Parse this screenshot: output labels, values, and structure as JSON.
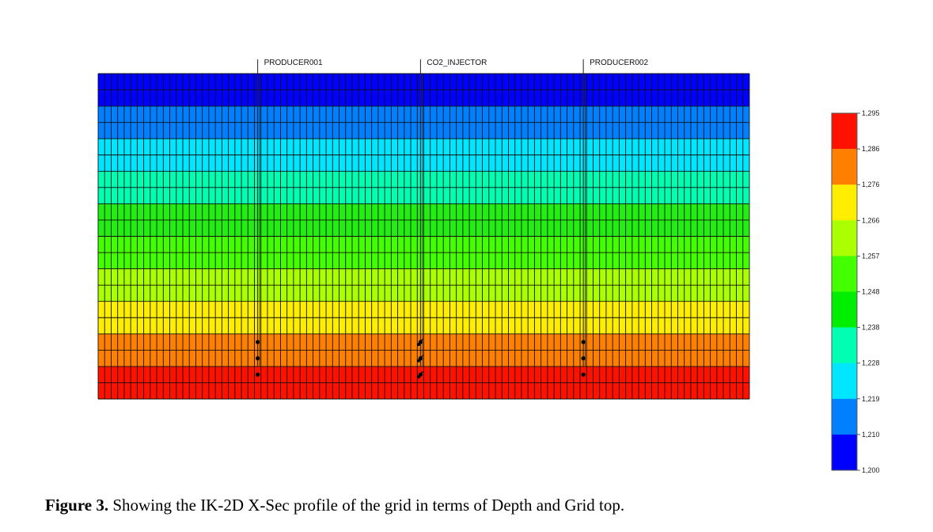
{
  "wells": [
    {
      "name": "PRODUCER001",
      "column": 24,
      "completions": [
        16,
        17,
        18
      ]
    },
    {
      "name": "CO2_INJECTOR",
      "column": 49,
      "completions": [
        16,
        17,
        18
      ]
    },
    {
      "name": "PRODUCER002",
      "column": 74,
      "completions": [
        16,
        17,
        18
      ]
    }
  ],
  "grid": {
    "columns": 100,
    "rows": 20,
    "layer_colors": [
      "#0000ff",
      "#0000ff",
      "#0080ff",
      "#0080ff",
      "#00e6ff",
      "#00e6ff",
      "#00ffb3",
      "#00ffb3",
      "#22ee11",
      "#22ee11",
      "#44ff00",
      "#44ff00",
      "#aaff00",
      "#aaff00",
      "#ffee00",
      "#ffee00",
      "#ff8000",
      "#ff8000",
      "#ff1100",
      "#ff1100"
    ]
  },
  "legend": {
    "colors": [
      "#ff1100",
      "#ff8000",
      "#ffee00",
      "#aaff00",
      "#44ff00",
      "#00ee00",
      "#00ffb3",
      "#00e6ff",
      "#0080ff",
      "#0000ff"
    ],
    "ticks": [
      "1,295",
      "1,286",
      "1,276",
      "1,266",
      "1,257",
      "1,248",
      "1,238",
      "1,228",
      "1,219",
      "1,210",
      "1,200"
    ]
  },
  "caption": {
    "label": "Figure 3.",
    "text": " Showing the IK-2D X-Sec profile of the grid in terms of Depth and Grid top."
  }
}
